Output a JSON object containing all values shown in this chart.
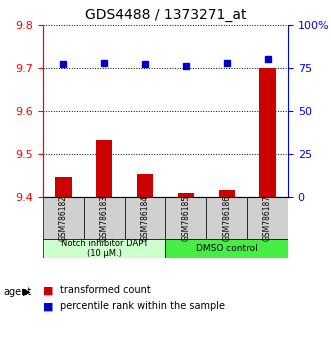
{
  "title": "GDS4488 / 1373271_at",
  "samples": [
    "GSM786182",
    "GSM786183",
    "GSM786184",
    "GSM786185",
    "GSM786186",
    "GSM786187"
  ],
  "red_values": [
    9.447,
    9.533,
    9.454,
    9.41,
    9.415,
    9.7
  ],
  "blue_values": [
    77,
    78,
    77,
    76,
    78,
    80
  ],
  "ylim_left": [
    9.4,
    9.8
  ],
  "ylim_right": [
    0,
    100
  ],
  "yticks_left": [
    9.4,
    9.5,
    9.6,
    9.7,
    9.8
  ],
  "yticks_right": [
    0,
    25,
    50,
    75,
    100
  ],
  "ytick_labels_right": [
    "0",
    "25",
    "50",
    "75",
    "100%"
  ],
  "group1_label": "Notch inhibitor DAPT\n(10 μM.)",
  "group2_label": "DMSO control",
  "group1_color": "#ccffcc",
  "group2_color": "#44ee44",
  "bar_color": "#cc0000",
  "dot_color": "#0000cc",
  "legend_bar_label": "transformed count",
  "legend_dot_label": "percentile rank within the sample",
  "agent_label": "agent",
  "group1_samples": [
    0,
    1,
    2
  ],
  "group2_samples": [
    3,
    4,
    5
  ],
  "left_axis_color": "red",
  "right_axis_color": "blue",
  "bar_bottom": 9.4,
  "bar_width": 0.4
}
